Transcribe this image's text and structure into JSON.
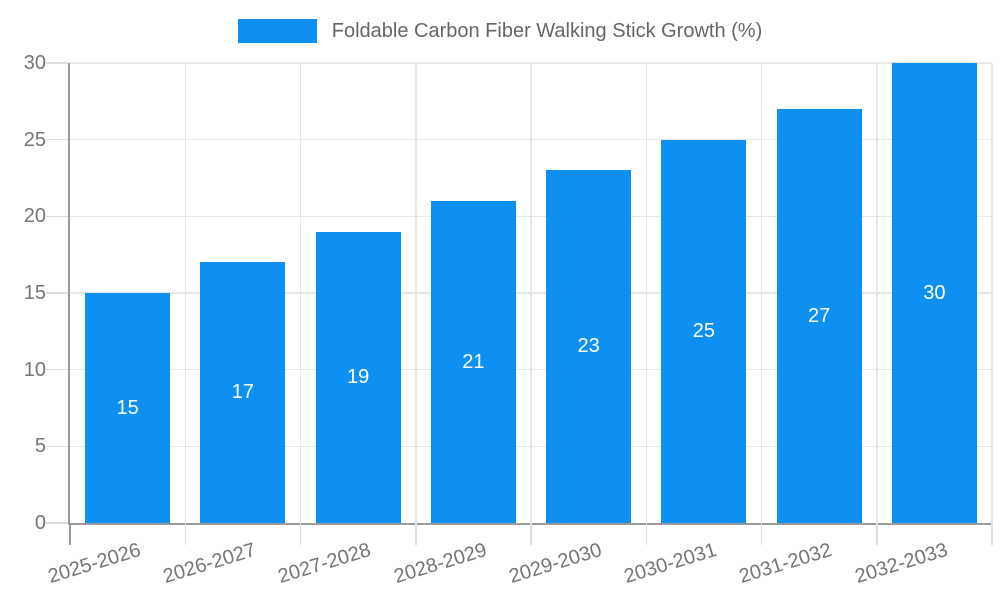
{
  "chart_data": {
    "type": "bar",
    "title": "Foldable Carbon Fiber Walking Stick Growth (%)",
    "categories": [
      "2025-2026",
      "2026-2027",
      "2027-2028",
      "2028-2029",
      "2029-2030",
      "2030-2031",
      "2031-2032",
      "2032-2033"
    ],
    "values": [
      15,
      17,
      19,
      21,
      23,
      25,
      27,
      30
    ],
    "value_labels": [
      "15",
      "17",
      "19",
      "21",
      "23",
      "25",
      "27",
      "30"
    ],
    "xlabel": "",
    "ylabel": "",
    "ylim": [
      0,
      30
    ],
    "yticks": [
      0,
      5,
      10,
      15,
      20,
      25,
      30
    ],
    "ytick_labels": [
      "0",
      "5",
      "10",
      "15",
      "20",
      "25",
      "30"
    ],
    "grid": true,
    "legend_position": "top-center",
    "colors": {
      "bar": "#0d90f2",
      "value_label": "#ffffff",
      "grid_line": "#e7e7e7",
      "axis_line": "#9a9a9a",
      "tick_label": "#757575",
      "legend_text": "#666666",
      "background": "#ffffff"
    }
  }
}
